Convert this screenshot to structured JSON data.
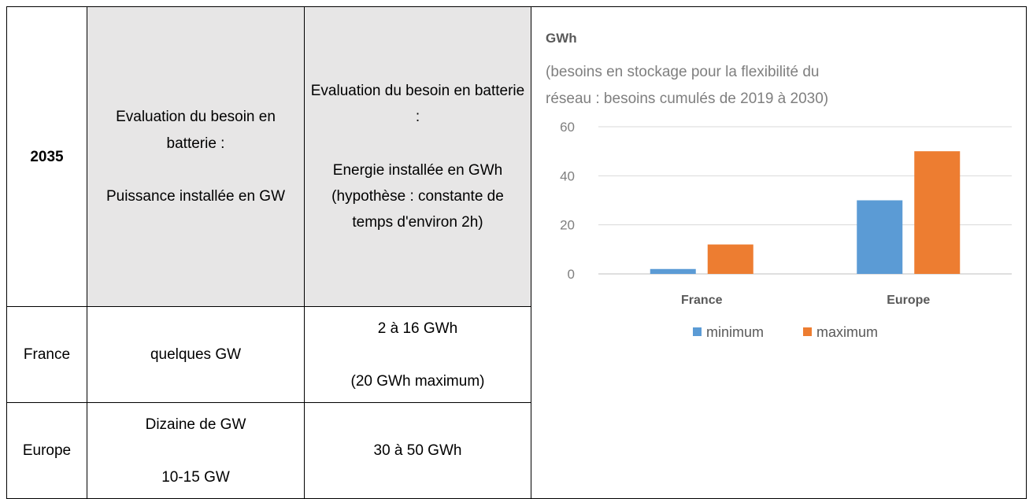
{
  "table": {
    "header": [
      [
        "2035"
      ],
      [
        "Evaluation du besoin en batterie :",
        "Puissance installée en GW"
      ],
      [
        "Evaluation du besoin en batterie :",
        "Energie installée en GWh (hypothèse : constante de temps d'environ 2h)"
      ]
    ],
    "rows": [
      [
        [
          "France"
        ],
        [
          "quelques GW"
        ],
        [
          "2 à 16 GWh",
          "(20 GWh maximum)"
        ]
      ],
      [
        [
          "Europe"
        ],
        [
          "Dizaine de GW",
          "10-15 GW"
        ],
        [
          "30 à 50 GWh"
        ]
      ]
    ]
  },
  "chart_data": {
    "type": "bar",
    "title": "GWh",
    "subtitle": [
      "(besoins en stockage pour la flexibilité du",
      "réseau : besoins cumulés de 2019 à 2030)"
    ],
    "categories": [
      "France",
      "Europe"
    ],
    "series": [
      {
        "name": "minimum",
        "color": "#5b9bd5",
        "values": [
          2,
          30
        ]
      },
      {
        "name": "maximum",
        "color": "#ed7d31",
        "values": [
          12,
          50
        ]
      }
    ],
    "ylim": [
      0,
      60
    ],
    "yticks": [
      0,
      20,
      40,
      60
    ],
    "grid": true,
    "legend": "bottom"
  }
}
